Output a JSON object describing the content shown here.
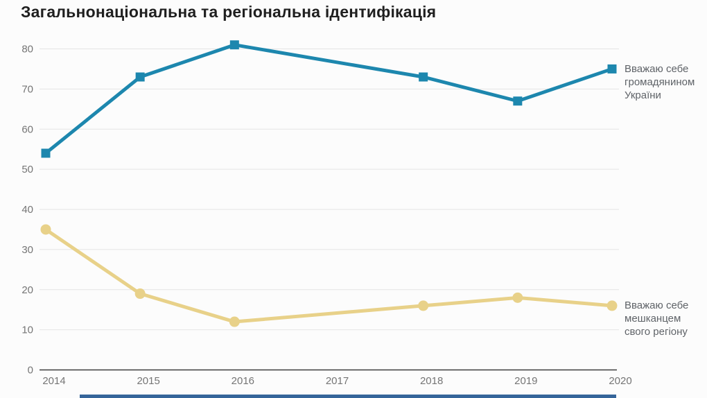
{
  "title": "Загальнонаціональна та регіональна ідентифікація",
  "legend": {
    "citizen": "Вважаю себе громадянином України",
    "region": "Вважаю себе мешканцем свого регіону"
  },
  "colors": {
    "citizen_line": "#1d87ae",
    "region_line": "#e8d189",
    "grid": "#e4e4e4",
    "axis": "#3c3c3c",
    "tick_label": "#757575",
    "legend_text": "#5f6368",
    "title_text": "#1f1f1f",
    "background": "#fcfcfc",
    "bottom_bar": "#35659a"
  },
  "chart_data": {
    "type": "line",
    "title": "Загальнонаціональна та регіональна ідентифікація",
    "x": [
      2014,
      2015,
      2016,
      2017,
      2018,
      2019,
      2020
    ],
    "series": [
      {
        "name": "Вважаю себе громадянином України",
        "values": [
          54,
          73,
          81,
          null,
          73,
          67,
          75
        ],
        "color": "#1d87ae",
        "marker": "square"
      },
      {
        "name": "Вважаю себе мешканцем свого регіону",
        "values": [
          35,
          19,
          12,
          null,
          16,
          18,
          16
        ],
        "color": "#e8d189",
        "marker": "circle"
      }
    ],
    "xlabel": "",
    "ylabel": "",
    "ylim": [
      0,
      80
    ],
    "yticks": [
      0,
      10,
      20,
      30,
      40,
      50,
      60,
      70,
      80
    ],
    "grid": "horizontal",
    "legend_position": "right-of-line-end",
    "note": "No data point plotted for 2017; lines interpolate between 2016 and 2018"
  }
}
